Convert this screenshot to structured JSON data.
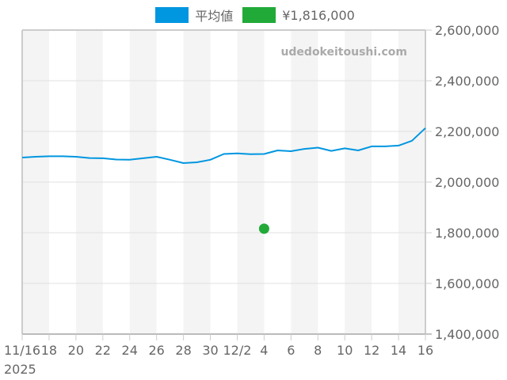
{
  "legend": [
    {
      "label": "平均値",
      "color": "#0096e0"
    },
    {
      "label": "¥1,816,000",
      "color": "#22aa38"
    }
  ],
  "watermark": "udedokeitoushi.com",
  "chart_data": {
    "type": "line",
    "title": "",
    "xlabel": "",
    "ylabel": "",
    "ylim": [
      1400000,
      2600000
    ],
    "y_ticks": [
      "2,600,000",
      "2,400,000",
      "2,200,000",
      "2,000,000",
      "1,800,000",
      "1,600,000",
      "1,400,000"
    ],
    "y_tick_values": [
      2600000,
      2400000,
      2200000,
      2000000,
      1800000,
      1600000,
      1400000
    ],
    "x_tick_labels": [
      "11/16",
      "18",
      "20",
      "22",
      "24",
      "26",
      "28",
      "30",
      "12/2",
      "4",
      "6",
      "8",
      "10",
      "12",
      "14",
      "16"
    ],
    "x_year_label": "2025",
    "legend_position": "top",
    "grid": true,
    "x": [
      "11/16",
      "11/17",
      "11/18",
      "11/19",
      "11/20",
      "11/21",
      "11/22",
      "11/23",
      "11/24",
      "11/25",
      "11/26",
      "11/27",
      "11/28",
      "11/29",
      "11/30",
      "12/1",
      "12/2",
      "12/3",
      "12/4",
      "12/5",
      "12/6",
      "12/7",
      "12/8",
      "12/9",
      "12/10",
      "12/11",
      "12/12",
      "12/13",
      "12/14",
      "12/15",
      "12/16"
    ],
    "series": [
      {
        "name": "平均値",
        "type": "line",
        "color": "#0096e0",
        "values": [
          2097000,
          2100000,
          2102000,
          2102000,
          2100000,
          2095000,
          2094000,
          2089000,
          2088000,
          2094000,
          2100000,
          2088000,
          2075000,
          2078000,
          2088000,
          2111000,
          2113000,
          2110000,
          2111000,
          2125000,
          2122000,
          2131000,
          2136000,
          2123000,
          2133000,
          2125000,
          2141000,
          2141000,
          2144000,
          2163000,
          2213000
        ]
      },
      {
        "name": "¥1,816,000",
        "type": "scatter",
        "color": "#22aa38",
        "points": [
          {
            "x": "12/4",
            "y": 1816000
          }
        ]
      }
    ]
  }
}
